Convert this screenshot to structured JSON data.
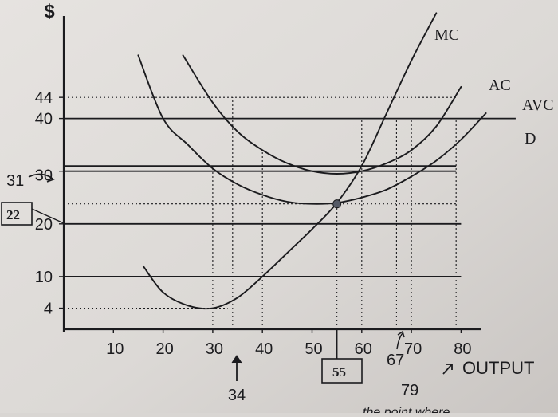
{
  "chart_data": {
    "type": "line",
    "ylabel": "$",
    "xlabel": "OUTPUT",
    "xlim": [
      0,
      84
    ],
    "ylim": [
      0,
      60
    ],
    "x_ticks": [
      "10",
      "20",
      "30",
      "40",
      "50",
      "60",
      "70",
      "80"
    ],
    "y_ticks": [
      "4",
      "10",
      "20",
      "30",
      "40",
      "44"
    ],
    "series": [
      {
        "name": "MC",
        "x": [
          16,
          20,
          25,
          30,
          35,
          40,
          45,
          50,
          55,
          60,
          65,
          70,
          75
        ],
        "y": [
          12,
          7,
          4.5,
          4,
          6,
          10,
          14.5,
          19,
          24,
          31,
          41,
          51,
          60
        ]
      },
      {
        "name": "AC",
        "x": [
          24,
          30,
          35,
          40,
          45,
          50,
          55,
          60,
          65,
          70,
          75,
          80
        ],
        "y": [
          52,
          43,
          37.5,
          34,
          31.5,
          30,
          29.5,
          30,
          31.5,
          34,
          38.5,
          46
        ]
      },
      {
        "name": "AVC",
        "x": [
          15,
          20,
          25,
          30,
          35,
          40,
          45,
          50,
          55,
          60,
          65,
          70,
          75,
          80,
          85
        ],
        "y": [
          52,
          40,
          35,
          30.5,
          27.5,
          25.5,
          24.2,
          23.8,
          24,
          25,
          26.5,
          29,
          32,
          36,
          41
        ]
      }
    ],
    "horizontal_lines": [
      {
        "name": "D",
        "y": 40
      },
      {
        "y": 31
      },
      {
        "y": 30
      },
      {
        "y": 20
      },
      {
        "y": 10
      }
    ],
    "dotted_levels": [
      44,
      23.8,
      4
    ],
    "dotted_verticals": [
      30,
      34,
      40,
      55,
      60,
      67,
      70,
      79
    ],
    "highlight_point": {
      "x": 55,
      "y": 23.8
    },
    "annotations": {
      "y_31": "31",
      "y_22": "22",
      "x_55": "55",
      "x_34": "34",
      "x_67": "67",
      "x_79": "79",
      "bottom_note": "the point where"
    },
    "colors": {
      "ink": "#1b1b1e",
      "paper": "#d9d6d3"
    }
  }
}
